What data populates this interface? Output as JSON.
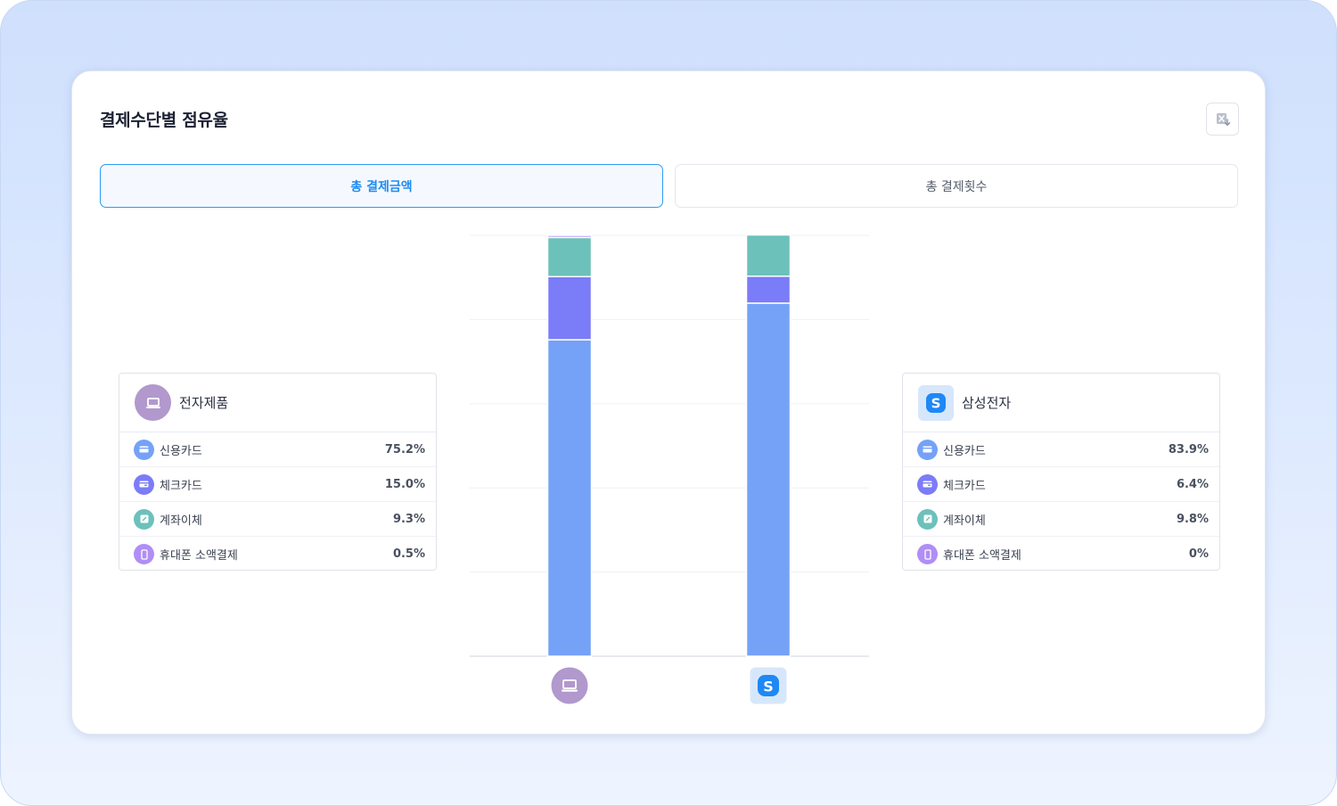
{
  "card": {
    "title": "결제수단별 점유율"
  },
  "tabs": [
    {
      "label": "총 결제금액",
      "active": true
    },
    {
      "label": "총 결제횟수",
      "active": false
    }
  ],
  "colors": {
    "credit_card": "#75a2f7",
    "check_card": "#7b7cf8",
    "account_transfer": "#6cc1ba",
    "mobile_payment": "#b08ef5",
    "tab_active": "#1f8cf0"
  },
  "merchants": [
    {
      "name": "전자제품",
      "icon": "laptop-icon",
      "rows": [
        {
          "label": "신용카드",
          "value": "75.2%",
          "icon": "credit-card-icon"
        },
        {
          "label": "체크카드",
          "value": "15.0%",
          "icon": "check-card-icon"
        },
        {
          "label": "계좌이체",
          "value": "9.3%",
          "icon": "transfer-icon"
        },
        {
          "label": "휴대폰 소액결제",
          "value": "0.5%",
          "icon": "mobile-icon"
        }
      ]
    },
    {
      "name": "삼성전자",
      "icon": "samsung-s-icon",
      "rows": [
        {
          "label": "신용카드",
          "value": "83.9%",
          "icon": "credit-card-icon"
        },
        {
          "label": "체크카드",
          "value": "6.4%",
          "icon": "check-card-icon"
        },
        {
          "label": "계좌이체",
          "value": "9.8%",
          "icon": "transfer-icon"
        },
        {
          "label": "휴대폰 소액결제",
          "value": "0%",
          "icon": "mobile-icon"
        }
      ]
    }
  ],
  "chart_data": {
    "type": "bar",
    "stacked": true,
    "categories": [
      "전자제품",
      "삼성전자"
    ],
    "series": [
      {
        "name": "신용카드",
        "values": [
          75.2,
          83.9
        ]
      },
      {
        "name": "체크카드",
        "values": [
          15.0,
          6.4
        ]
      },
      {
        "name": "계좌이체",
        "values": [
          9.3,
          9.8
        ]
      },
      {
        "name": "휴대폰 소액결제",
        "values": [
          0.5,
          0
        ]
      }
    ],
    "ylim": [
      0,
      100
    ],
    "grid": true
  }
}
